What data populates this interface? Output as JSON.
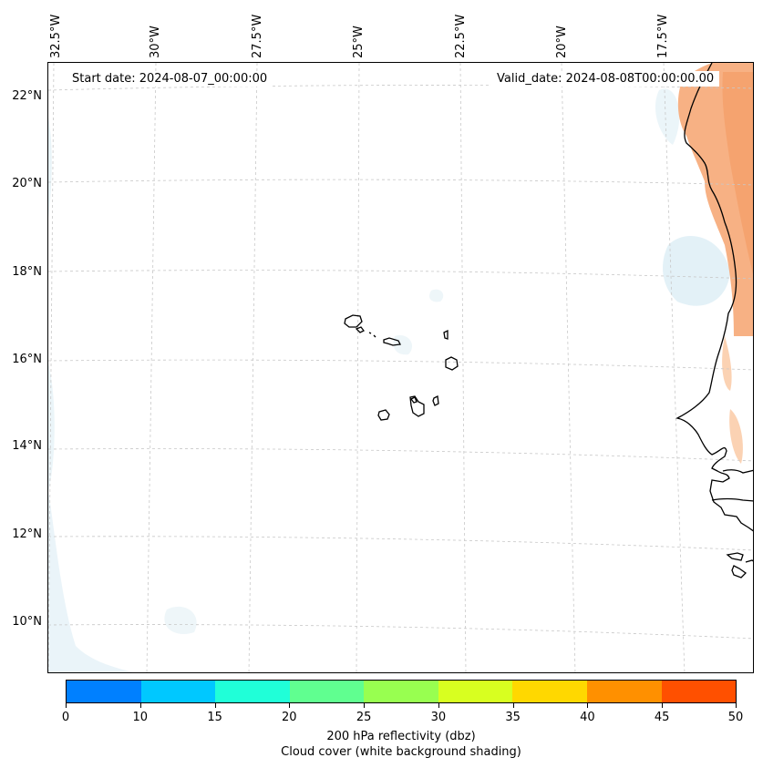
{
  "map": {
    "start_label": "Start date: 2024-08-07_00:00:00",
    "valid_label": "Valid_date: 2024-08-08T00:00:00.00",
    "longitude_labels": [
      "32.5°W",
      "30°W",
      "27.5°W",
      "25°W",
      "22.5°W",
      "20°W",
      "17.5°W"
    ],
    "latitude_labels": [
      "22°N",
      "20°N",
      "18°N",
      "16°N",
      "14°N",
      "12°N",
      "10°N"
    ],
    "land_outline_color": "#000000",
    "gridline_color": "#c8c8c8"
  },
  "colorbar": {
    "ticks": [
      "0",
      "10",
      "15",
      "20",
      "25",
      "30",
      "35",
      "40",
      "45",
      "50"
    ],
    "colors": [
      "#0080ff",
      "#00c8ff",
      "#20ffd8",
      "#60ff90",
      "#98ff50",
      "#d8ff20",
      "#ffd800",
      "#ff9000",
      "#ff5000"
    ],
    "label_line1": "200 hPa reflectivity (dbz)",
    "label_line2": "Cloud cover (white background shading)"
  }
}
